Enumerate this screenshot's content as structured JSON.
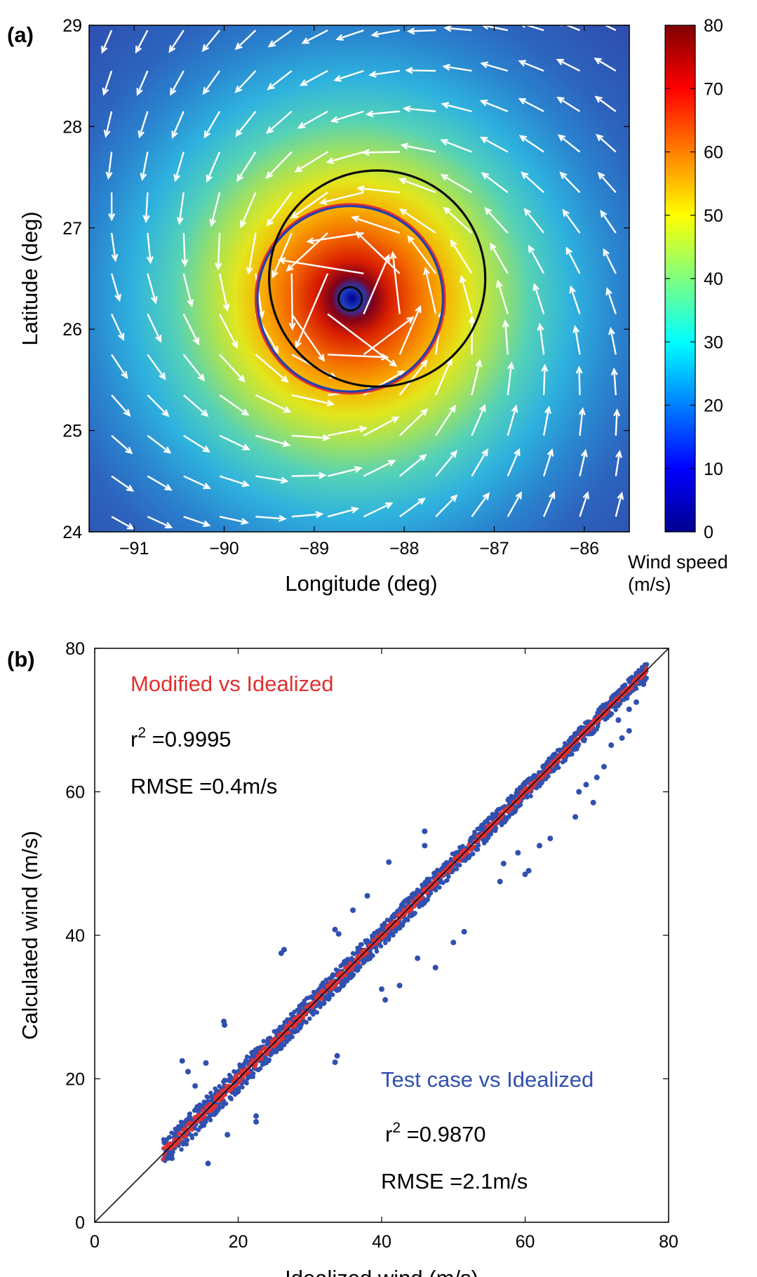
{
  "chart_data": [
    {
      "panel_label": "(a)",
      "type": "heatmap",
      "overlay": "vector field (wind arrows) and circles",
      "xlabel": "Longitude (deg)",
      "ylabel": "Latitude (deg)",
      "xlim": [
        -91.5,
        -85.5
      ],
      "ylim": [
        24,
        29
      ],
      "xticks": [
        -91,
        -90,
        -89,
        -88,
        -87,
        -86
      ],
      "yticks": [
        24,
        25,
        26,
        27,
        28,
        29
      ],
      "xtick_labels": [
        "−91",
        "−90",
        "−89",
        "−88",
        "−87",
        "−86"
      ],
      "ytick_labels": [
        "24",
        "25",
        "26",
        "27",
        "28",
        "29"
      ],
      "storm_center": [
        -88.6,
        26.3
      ],
      "max_speed": 78,
      "radius_max_wind_deg": 0.3,
      "circles": [
        {
          "color": "#0a0a0a",
          "center": [
            -88.6,
            26.3
          ],
          "radius_deg": 0.13
        },
        {
          "color": "#e03030",
          "center": [
            -88.6,
            26.3
          ],
          "radius_deg": 1.05
        },
        {
          "color": "#2040b0",
          "center": [
            -88.6,
            26.3
          ],
          "radius_deg": 1.03
        },
        {
          "color": "#0a0a0a",
          "center": [
            -88.3,
            26.5
          ],
          "radius_deg": 1.2
        }
      ],
      "colorbar": {
        "label_line1": "Wind speed",
        "label_line2": "(m/s)",
        "range": [
          0,
          80
        ],
        "ticks": [
          0,
          10,
          20,
          30,
          40,
          50,
          60,
          70,
          80
        ],
        "tick_labels": [
          "0",
          "10",
          "20",
          "30",
          "40",
          "50",
          "60",
          "70",
          "80"
        ],
        "colormap": "jet"
      },
      "arrow_color": "#ffffff"
    },
    {
      "panel_label": "(b)",
      "type": "scatter",
      "xlabel": "Idealized wind (m/s)",
      "ylabel": "Calculated wind (m/s)",
      "xlim": [
        0,
        80
      ],
      "ylim": [
        0,
        80
      ],
      "xticks": [
        0,
        20,
        40,
        60,
        80
      ],
      "yticks": [
        0,
        20,
        40,
        60,
        80
      ],
      "xtick_labels": [
        "0",
        "20",
        "40",
        "60",
        "80"
      ],
      "ytick_labels": [
        "0",
        "20",
        "40",
        "60",
        "80"
      ],
      "reference_line": {
        "from": [
          0,
          0
        ],
        "to": [
          80,
          80
        ],
        "color": "#000000"
      },
      "data_range": [
        9.5,
        77
      ],
      "series": [
        {
          "group": "test",
          "color": "#3050b0",
          "band_halfwidth_at_low": 2.0,
          "band_halfwidth_at_high": 1.2,
          "outliers": [
            [
              12.2,
              22.5
            ],
            [
              13.0,
              21.0
            ],
            [
              14.0,
              19.0
            ],
            [
              15.5,
              22.2
            ],
            [
              15.8,
              8.2
            ],
            [
              18.0,
              28.0
            ],
            [
              18.1,
              27.5
            ],
            [
              18.5,
              12.2
            ],
            [
              22.5,
              14.0
            ],
            [
              22.5,
              14.8
            ],
            [
              26.0,
              37.5
            ],
            [
              26.4,
              38.0
            ],
            [
              33.5,
              22.3
            ],
            [
              33.8,
              23.2
            ],
            [
              33.5,
              40.8
            ],
            [
              34.0,
              40.2
            ],
            [
              36.0,
              43.5
            ],
            [
              38.0,
              45.5
            ],
            [
              40.5,
              31.0
            ],
            [
              40.0,
              32.5
            ],
            [
              41.0,
              50.2
            ],
            [
              42.5,
              33.0
            ],
            [
              45.0,
              36.8
            ],
            [
              47.5,
              35.5
            ],
            [
              46.0,
              52.5
            ],
            [
              50.0,
              39.0
            ],
            [
              51.5,
              40.5
            ],
            [
              46.0,
              54.5
            ],
            [
              56.5,
              47.5
            ],
            [
              57.0,
              50.0
            ],
            [
              59.0,
              51.5
            ],
            [
              60.5,
              49.0
            ],
            [
              60.0,
              48.5
            ],
            [
              62.0,
              52.5
            ],
            [
              63.5,
              53.5
            ],
            [
              67.0,
              56.5
            ],
            [
              67.5,
              60.0
            ],
            [
              69.5,
              58.5
            ],
            [
              68.5,
              61.0
            ],
            [
              70.0,
              62.0
            ],
            [
              71.0,
              63.5
            ],
            [
              72.0,
              66.5
            ],
            [
              73.0,
              70.0
            ],
            [
              74.5,
              71.5
            ],
            [
              73.5,
              67.5
            ],
            [
              75.5,
              72.5
            ],
            [
              74.5,
              68.5
            ],
            [
              76.5,
              75.0
            ]
          ]
        },
        {
          "group": "modified",
          "color": "#e03030",
          "band_halfwidth_at_low": 0.8,
          "band_halfwidth_at_high": 0.4
        }
      ],
      "annotations": {
        "modified": {
          "title": "Modified vs Idealized",
          "r2_base": "r",
          "r2_sup": "2",
          "r2_value": " =0.9995",
          "rmse": "RMSE =0.4m/s"
        },
        "test": {
          "title": "Test case vs Idealized",
          "r2_base": "r",
          "r2_sup": "2",
          "r2_value": " =0.9870",
          "rmse": "RMSE =2.1m/s"
        }
      }
    }
  ]
}
